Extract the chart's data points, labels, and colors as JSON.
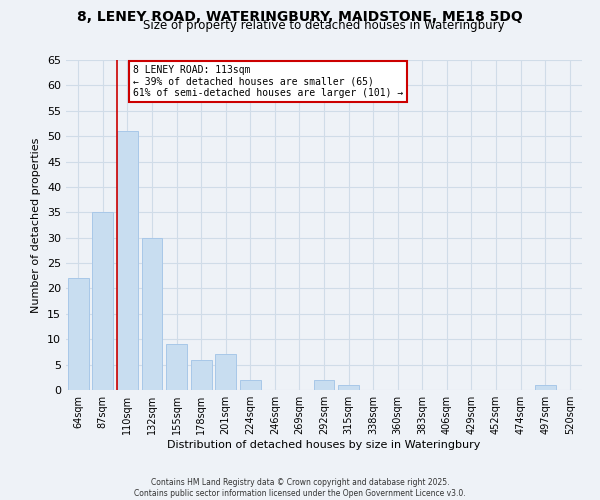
{
  "title1": "8, LENEY ROAD, WATERINGBURY, MAIDSTONE, ME18 5DQ",
  "title2": "Size of property relative to detached houses in Wateringbury",
  "xlabel": "Distribution of detached houses by size in Wateringbury",
  "ylabel": "Number of detached properties",
  "bar_color": "#c8ddf0",
  "bar_edge_color": "#a8c8e8",
  "categories": [
    "64sqm",
    "87sqm",
    "110sqm",
    "132sqm",
    "155sqm",
    "178sqm",
    "201sqm",
    "224sqm",
    "246sqm",
    "269sqm",
    "292sqm",
    "315sqm",
    "338sqm",
    "360sqm",
    "383sqm",
    "406sqm",
    "429sqm",
    "452sqm",
    "474sqm",
    "497sqm",
    "520sqm"
  ],
  "values": [
    22,
    35,
    51,
    30,
    9,
    6,
    7,
    2,
    0,
    0,
    2,
    1,
    0,
    0,
    0,
    0,
    0,
    0,
    0,
    1,
    0
  ],
  "ylim": [
    0,
    65
  ],
  "yticks": [
    0,
    5,
    10,
    15,
    20,
    25,
    30,
    35,
    40,
    45,
    50,
    55,
    60,
    65
  ],
  "marker_bar_index": 2,
  "marker_label": "8 LENEY ROAD: 113sqm",
  "annotation_line1": "← 39% of detached houses are smaller (65)",
  "annotation_line2": "61% of semi-detached houses are larger (101) →",
  "annotation_box_color": "#ffffff",
  "annotation_border_color": "#cc0000",
  "marker_line_color": "#cc0000",
  "footer1": "Contains HM Land Registry data © Crown copyright and database right 2025.",
  "footer2": "Contains public sector information licensed under the Open Government Licence v3.0.",
  "grid_color": "#d0dce8",
  "background_color": "#eef2f7"
}
